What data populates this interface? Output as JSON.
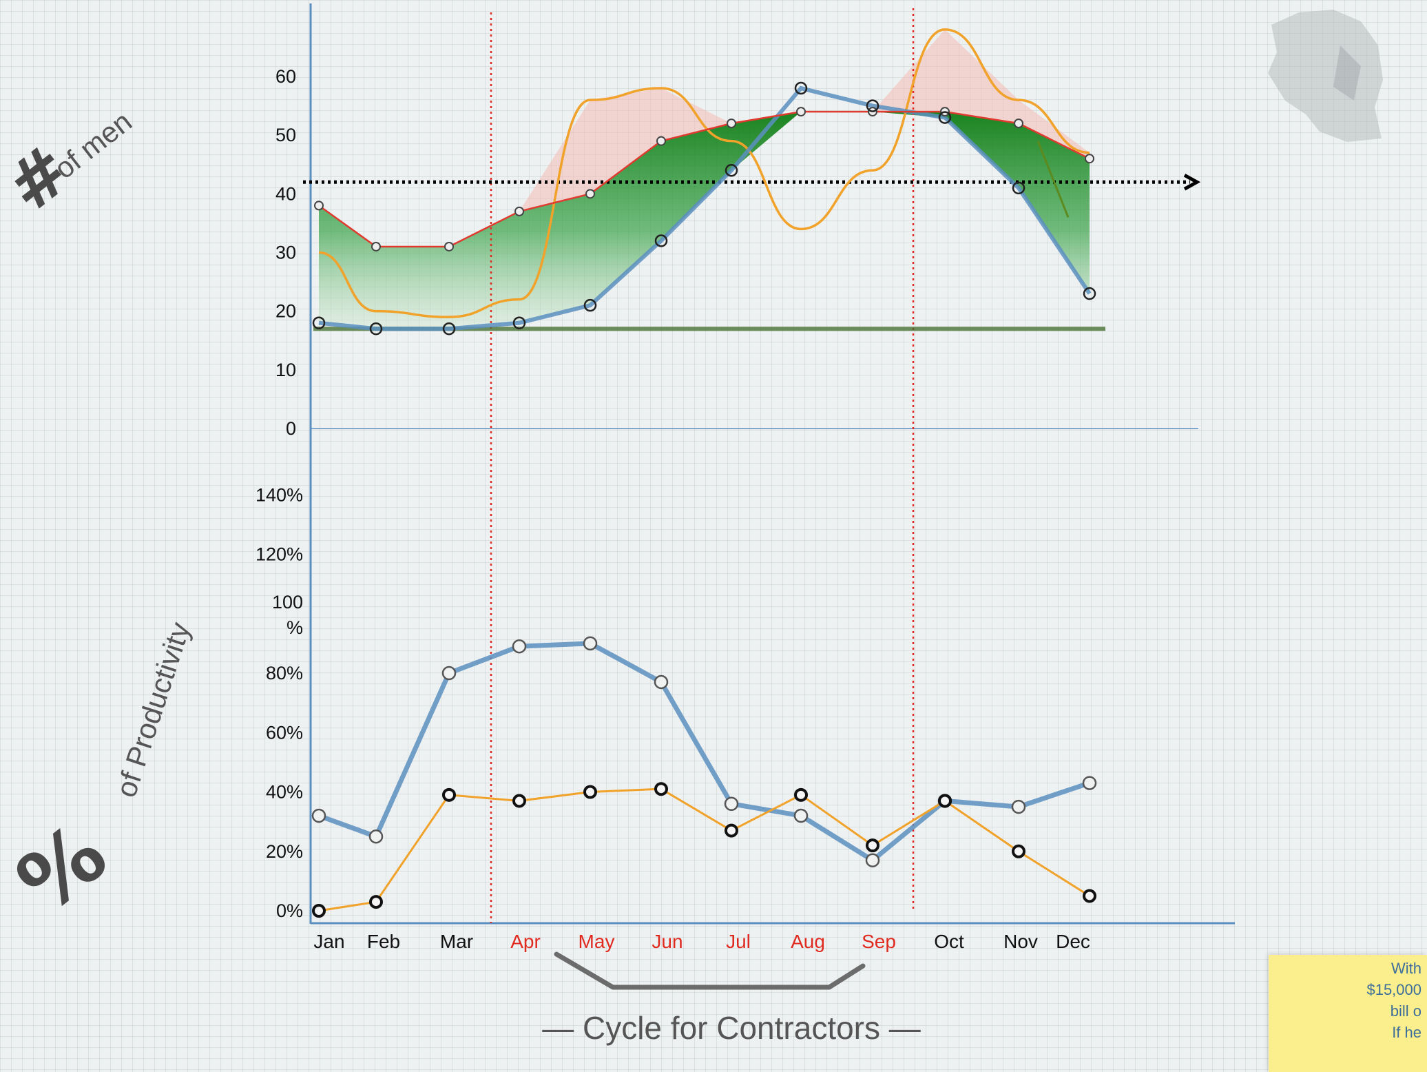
{
  "chart_data": [
    {
      "type": "area",
      "title": "",
      "ylabel_symbol": "#",
      "ylabel": "of men",
      "yticks": [
        "0",
        "10",
        "20",
        "30",
        "40",
        "50",
        "60"
      ],
      "ylim": [
        0,
        70
      ],
      "categories": [
        "Jan",
        "Feb",
        "Mar",
        "Apr",
        "May",
        "Jun",
        "Jul",
        "Aug",
        "Sep",
        "Oct",
        "Nov",
        "Dec"
      ],
      "reference_line": 42,
      "baseline": 17,
      "series": [
        {
          "name": "red",
          "color": "#e03a2f",
          "values": [
            38,
            31,
            31,
            37,
            40,
            49,
            52,
            54,
            54,
            54,
            52,
            46
          ]
        },
        {
          "name": "blue",
          "color": "#5b8fc0",
          "values": [
            18,
            17,
            17,
            18,
            21,
            32,
            44,
            58,
            55,
            53,
            41,
            23
          ]
        },
        {
          "name": "orange",
          "color": "#f0a22a",
          "values": [
            30,
            20,
            19,
            22,
            56,
            58,
            49,
            34,
            44,
            68,
            56,
            47
          ]
        }
      ]
    },
    {
      "type": "line",
      "ylabel_symbol": "%",
      "ylabel": "of Productivity",
      "yticks": [
        "0%",
        "20%",
        "40%",
        "60%",
        "80%",
        "100\n%",
        "120%",
        "140%"
      ],
      "ylim": [
        0,
        140
      ],
      "categories": [
        "Jan",
        "Feb",
        "Mar",
        "Apr",
        "May",
        "Jun",
        "Jul",
        "Aug",
        "Sep",
        "Oct",
        "Nov",
        "Dec"
      ],
      "series": [
        {
          "name": "blue",
          "color": "#5b8fc0",
          "values": [
            32,
            25,
            80,
            89,
            90,
            77,
            36,
            32,
            17,
            37,
            35,
            43
          ]
        },
        {
          "name": "orange",
          "color": "#f0a22a",
          "values": [
            0,
            3,
            39,
            37,
            40,
            41,
            27,
            39,
            22,
            37,
            20,
            5
          ]
        }
      ]
    }
  ],
  "xaxis": {
    "labels": [
      "Jan",
      "Feb",
      "Mar",
      "Apr",
      "May",
      "Jun",
      "Jul",
      "Aug",
      "Sep",
      "Oct",
      "Nov",
      "Dec"
    ],
    "highlight": [
      "Apr",
      "May",
      "Jun",
      "Jul",
      "Aug",
      "Sep"
    ]
  },
  "caption": "— Cycle for Contractors —",
  "note": {
    "lines": [
      "With",
      "$15,000",
      "bill o",
      "",
      "If he"
    ]
  },
  "colors": {
    "axis": "#5b8fc0",
    "red": "#e03a2f",
    "green": "#0f7d14",
    "orange": "#f0a22a",
    "highlight_text": "#e02a20",
    "note_bg": "#fbee8c"
  }
}
